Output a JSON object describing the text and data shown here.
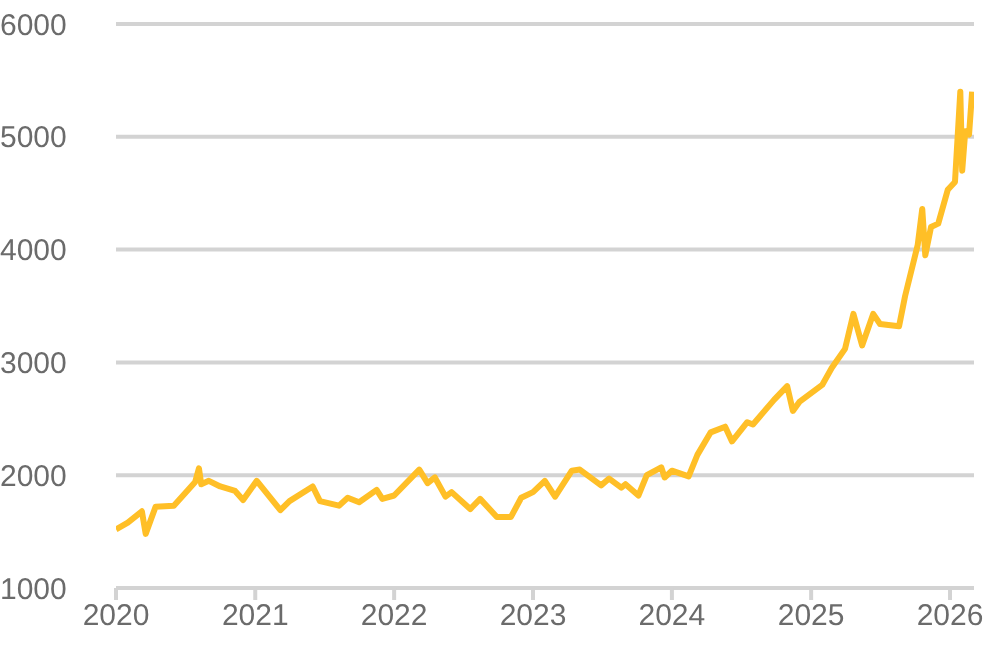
{
  "chart_data": {
    "type": "line",
    "x": [
      "2020-01-01",
      "2020-02-01",
      "2020-03-09",
      "2020-03-19",
      "2020-04-14",
      "2020-06-01",
      "2020-07-27",
      "2020-08-06",
      "2020-08-12",
      "2020-09-01",
      "2020-10-01",
      "2020-11-09",
      "2020-11-30",
      "2021-01-05",
      "2021-03-08",
      "2021-04-01",
      "2021-06-01",
      "2021-06-20",
      "2021-08-09",
      "2021-09-01",
      "2021-10-01",
      "2021-11-16",
      "2021-12-01",
      "2022-01-01",
      "2022-03-08",
      "2022-03-30",
      "2022-04-18",
      "2022-05-16",
      "2022-06-01",
      "2022-07-20",
      "2022-08-15",
      "2022-09-28",
      "2022-10-20",
      "2022-11-04",
      "2022-12-01",
      "2023-01-01",
      "2023-02-01",
      "2023-02-28",
      "2023-04-13",
      "2023-05-04",
      "2023-06-29",
      "2023-07-20",
      "2023-08-21",
      "2023-09-01",
      "2023-10-05",
      "2023-10-27",
      "2023-12-04",
      "2023-12-13",
      "2024-01-01",
      "2024-02-14",
      "2024-03-08",
      "2024-04-12",
      "2024-05-20",
      "2024-06-07",
      "2024-07-17",
      "2024-08-01",
      "2024-09-26",
      "2024-10-30",
      "2024-11-14",
      "2024-12-01",
      "2025-01-30",
      "2025-02-24",
      "2025-03-31",
      "2025-04-22",
      "2025-05-15",
      "2025-06-13",
      "2025-07-01",
      "2025-08-20",
      "2025-09-05",
      "2025-10-08",
      "2025-10-20",
      "2025-10-28",
      "2025-11-12",
      "2025-12-01",
      "2025-12-26",
      "2026-01-14",
      "2026-01-28",
      "2026-02-02",
      "2026-02-10",
      "2026-02-20",
      "2026-02-28"
    ],
    "series": [
      {
        "color": "#ffbf27",
        "values": [
          1520,
          1580,
          1680,
          1480,
          1720,
          1730,
          1940,
          2060,
          1920,
          1950,
          1900,
          1860,
          1780,
          1950,
          1690,
          1770,
          1900,
          1770,
          1730,
          1800,
          1760,
          1870,
          1790,
          1820,
          2050,
          1930,
          1980,
          1810,
          1850,
          1700,
          1790,
          1630,
          1630,
          1630,
          1800,
          1850,
          1950,
          1810,
          2040,
          2050,
          1910,
          1970,
          1890,
          1920,
          1820,
          2000,
          2070,
          1980,
          2040,
          1990,
          2180,
          2380,
          2430,
          2300,
          2470,
          2450,
          2670,
          2790,
          2570,
          2650,
          2800,
          2950,
          3120,
          3430,
          3150,
          3430,
          3340,
          3320,
          3590,
          4040,
          4360,
          3950,
          4200,
          4230,
          4530,
          4600,
          5400,
          4700,
          5050,
          5020,
          5400
        ]
      }
    ],
    "xlim": [
      "2020-01-01",
      "2026-03-05"
    ],
    "xticks": [
      "2020",
      "2021",
      "2022",
      "2023",
      "2024",
      "2025",
      "2026"
    ],
    "ylim": [
      1000,
      6000
    ],
    "yticks": [
      1000,
      2000,
      3000,
      4000,
      5000,
      6000
    ],
    "grid": "y",
    "line_style": "solid",
    "marker": "none",
    "legend": false
  }
}
